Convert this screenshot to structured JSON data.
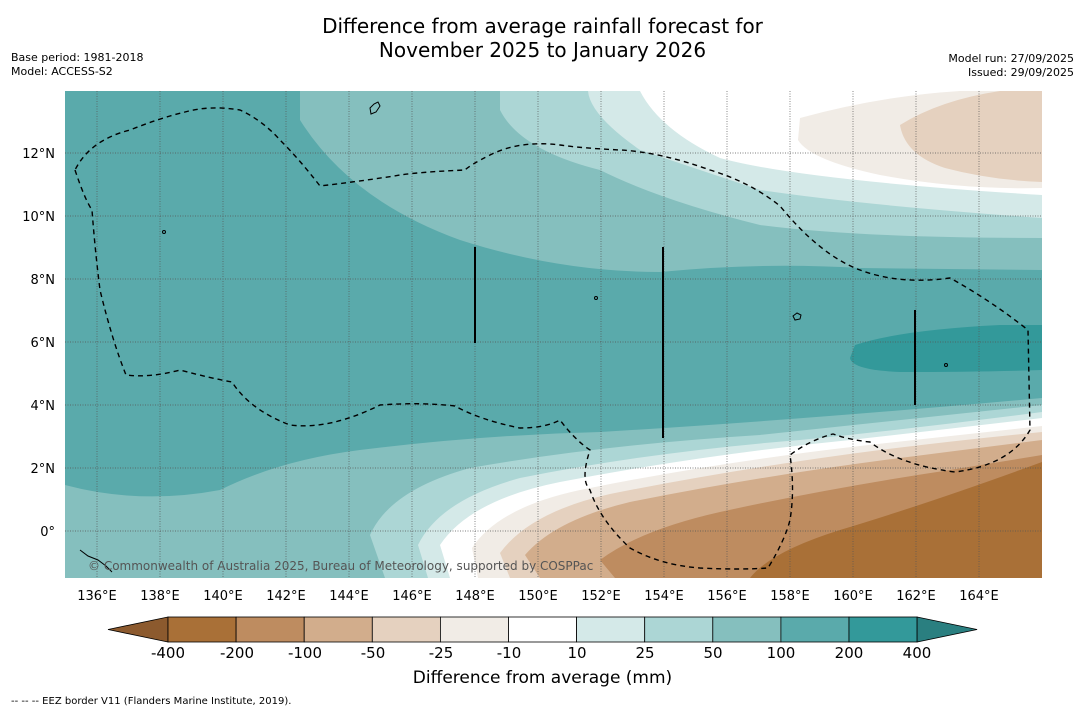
{
  "header": {
    "title_line1": "Difference from average rainfall forecast for",
    "title_line2": "November 2025 to January 2026",
    "base_period": "Base period: 1981-2018",
    "model": "Model: ACCESS-S2",
    "model_run": "Model run: 27/09/2025",
    "issued": "Issued: 29/09/2025"
  },
  "map": {
    "lon_range": [
      135,
      166
    ],
    "lat_range": [
      -1.5,
      14
    ],
    "lon_ticks": [
      "136°E",
      "138°E",
      "140°E",
      "142°E",
      "144°E",
      "146°E",
      "148°E",
      "150°E",
      "152°E",
      "154°E",
      "156°E",
      "158°E",
      "160°E",
      "162°E",
      "164°E"
    ],
    "lat_ticks": [
      "0°",
      "2°N",
      "4°N",
      "6°N",
      "8°N",
      "10°N",
      "12°N"
    ],
    "copyright": "© Commonwealth of Australia 2025, Bureau of Meteorology, supported by COSPPac"
  },
  "colorbar": {
    "labels": [
      "-400",
      "-200",
      "-100",
      "-50",
      "-25",
      "-10",
      "10",
      "25",
      "50",
      "100",
      "200",
      "400"
    ],
    "colors": [
      "#a97037",
      "#be8c60",
      "#d2ad8c",
      "#e5d1bf",
      "#f1ece6",
      "#ffffff",
      "#d4e9e8",
      "#acd6d5",
      "#85bfbe",
      "#5aaaab",
      "#33999a"
    ],
    "under_color": "#8c5a2e",
    "over_color": "#2a7f80",
    "title": "Difference from average (mm)"
  },
  "footnote": "--  --  -- EEZ border V11 (Flanders Marine Institute, 2019)."
}
